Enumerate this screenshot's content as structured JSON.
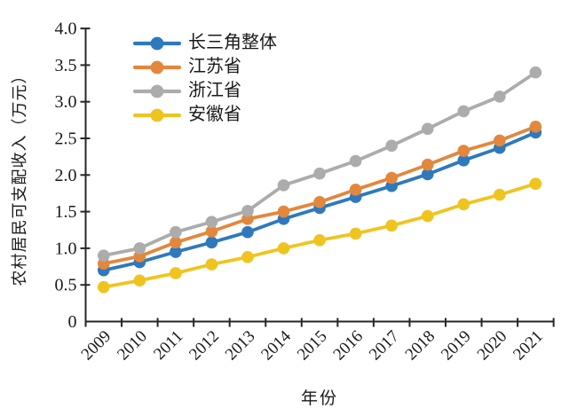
{
  "chart_data": {
    "type": "line",
    "title": "",
    "xlabel": "年份",
    "ylabel": "农村居民可支配收入（万元）",
    "categories": [
      "2009",
      "2010",
      "2011",
      "2012",
      "2013",
      "2014",
      "2015",
      "2016",
      "2017",
      "2018",
      "2019",
      "2020",
      "2021"
    ],
    "ylim": [
      0,
      4.0
    ],
    "ytick_step": 0.5,
    "ytick_labels": [
      "0",
      "0.5",
      "1.0",
      "1.5",
      "2.0",
      "2.5",
      "3.0",
      "3.5",
      "4.0"
    ],
    "grid": false,
    "legend_position": "inside-top-left",
    "axis_color": "#262626",
    "text_color": "#1a1a1a",
    "series": [
      {
        "name": "长三角整体",
        "color": "#2E79BD",
        "values": [
          0.7,
          0.81,
          0.95,
          1.08,
          1.22,
          1.4,
          1.55,
          1.7,
          1.85,
          2.01,
          2.2,
          2.37,
          2.58
        ]
      },
      {
        "name": "江苏省",
        "color": "#E3873C",
        "values": [
          0.79,
          0.89,
          1.08,
          1.23,
          1.4,
          1.5,
          1.63,
          1.8,
          1.96,
          2.14,
          2.33,
          2.47,
          2.66
        ]
      },
      {
        "name": "浙江省",
        "color": "#ACACAC",
        "values": [
          0.9,
          1.0,
          1.22,
          1.36,
          1.51,
          1.86,
          2.02,
          2.19,
          2.4,
          2.63,
          2.87,
          3.07,
          3.4
        ]
      },
      {
        "name": "安徽省",
        "color": "#F0C41F",
        "values": [
          0.47,
          0.56,
          0.66,
          0.78,
          0.88,
          1.0,
          1.11,
          1.2,
          1.31,
          1.44,
          1.6,
          1.73,
          1.88
        ]
      }
    ]
  }
}
